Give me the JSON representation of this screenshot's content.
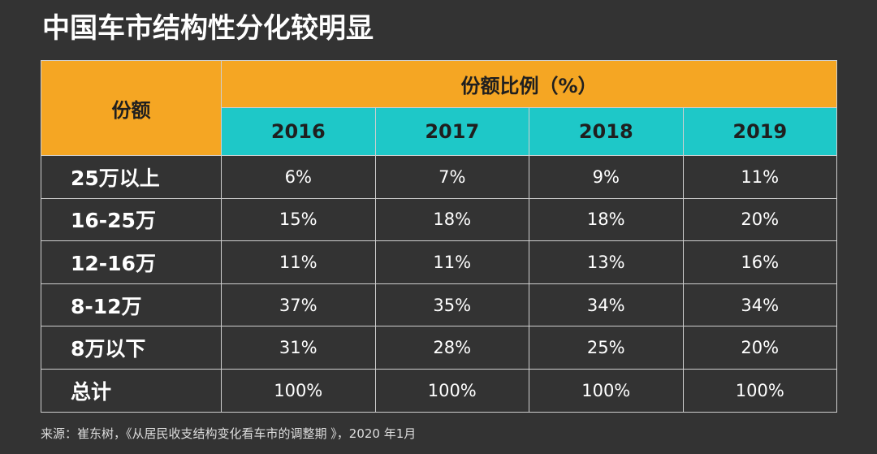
{
  "title": "中国车市结构性分化较明显",
  "colors": {
    "background": "#333333",
    "header_orange": "#f5a623",
    "header_cyan": "#1ec8c8",
    "text": "#ffffff"
  },
  "table": {
    "corner_label": "份额",
    "group_header": "份额比例（%）",
    "years": [
      "2016",
      "2017",
      "2018",
      "2019"
    ]
  },
  "chart_data": {
    "type": "table",
    "title": "中国车市结构性分化较明显",
    "columns": [
      "2016",
      "2017",
      "2018",
      "2019"
    ],
    "rows": [
      {
        "label": "25万以上",
        "values": [
          "6%",
          "7%",
          "9%",
          "11%"
        ]
      },
      {
        "label": "16-25万",
        "values": [
          "15%",
          "18%",
          "18%",
          "20%"
        ]
      },
      {
        "label": "12-16万",
        "values": [
          "11%",
          "11%",
          "13%",
          "16%"
        ]
      },
      {
        "label": "8-12万",
        "values": [
          "37%",
          "35%",
          "34%",
          "34%"
        ]
      },
      {
        "label": "8万以下",
        "values": [
          "31%",
          "28%",
          "25%",
          "20%"
        ]
      },
      {
        "label": "总计",
        "values": [
          "100%",
          "100%",
          "100%",
          "100%"
        ]
      }
    ]
  },
  "source": "来源：崔东树，《从居民收支结构变化看车市的调整期 》，2020 年1月"
}
